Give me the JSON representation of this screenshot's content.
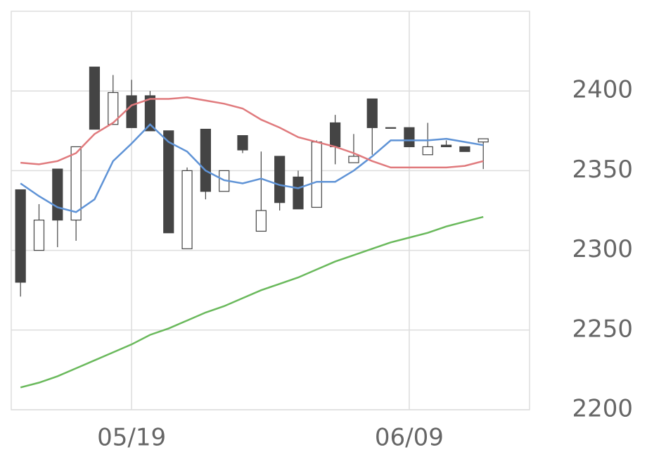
{
  "chart_data": {
    "type": "candlestick",
    "categories": [
      null,
      null,
      null,
      null,
      null,
      null,
      "05/19",
      null,
      null,
      null,
      null,
      null,
      null,
      null,
      null,
      null,
      null,
      null,
      null,
      null,
      null,
      "06/09",
      null,
      null,
      null,
      null
    ],
    "open": [
      2338,
      2300,
      2351,
      2319,
      2415,
      2379,
      2397,
      2397,
      2375,
      2301,
      2376,
      2337,
      2372,
      2312,
      2359,
      2346,
      2327,
      2380,
      2355,
      2395,
      2377,
      2377,
      2360,
      2366,
      2365,
      2368
    ],
    "high": [
      2338,
      2329,
      2351,
      2365,
      2415,
      2410,
      2407,
      2400,
      2375,
      2352,
      2376,
      2350,
      2372,
      2362,
      2359,
      2350,
      2369,
      2385,
      2373,
      2395,
      2377,
      2377,
      2380,
      2369,
      2365,
      2370
    ],
    "low": [
      2271,
      2300,
      2302,
      2306,
      2376,
      2379,
      2377,
      2375,
      2311,
      2301,
      2332,
      2337,
      2361,
      2312,
      2325,
      2326,
      2327,
      2354,
      2355,
      2360,
      2377,
      2365,
      2360,
      2365,
      2362,
      2351
    ],
    "close": [
      2280,
      2319,
      2319,
      2365,
      2376,
      2399,
      2377,
      2375,
      2311,
      2350,
      2337,
      2350,
      2363,
      2325,
      2330,
      2326,
      2368,
      2365,
      2359,
      2377,
      2377,
      2365,
      2365,
      2365,
      2362,
      2370
    ],
    "up_color": "#ffffff",
    "down_color": "#444444",
    "series": [
      {
        "color": "#5f93d6",
        "values": [
          2342,
          2334,
          2327,
          2324,
          2332,
          2356,
          2367,
          2379,
          2368,
          2362,
          2350,
          2344,
          2342,
          2345,
          2341,
          2339,
          2343,
          2343,
          2350,
          2359,
          2369,
          2369,
          2369,
          2370,
          2368,
          2366
        ]
      },
      {
        "color": "#e07a7d",
        "values": [
          2355,
          2354,
          2356,
          2361,
          2373,
          2380,
          2391,
          2395,
          2395,
          2396,
          2394,
          2392,
          2389,
          2382,
          2377,
          2371,
          2368,
          2365,
          2361,
          2356,
          2352,
          2352,
          2352,
          2352,
          2353,
          2356
        ]
      },
      {
        "color": "#6ab95c",
        "values": [
          2214,
          2217,
          2221,
          2226,
          2231,
          2236,
          2241,
          2247,
          2251,
          2256,
          2261,
          2265,
          2270,
          2275,
          2279,
          2283,
          2288,
          2293,
          2297,
          2301,
          2305,
          2308,
          2311,
          2315,
          2318,
          2321
        ]
      }
    ],
    "ylim": [
      2200,
      2450
    ],
    "yticks": [
      2200,
      2250,
      2300,
      2350,
      2400
    ],
    "grid": true
  }
}
